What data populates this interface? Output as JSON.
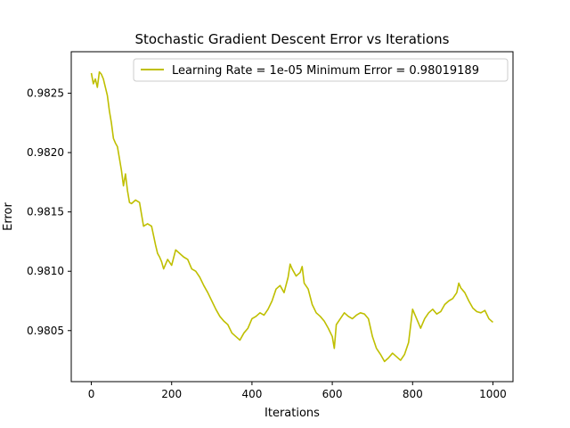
{
  "chart_data": {
    "type": "line",
    "title": "Stochastic Gradient Descent Error vs Iterations",
    "xlabel": "Iterations",
    "ylabel": "Error",
    "xlim": [
      -50,
      1050
    ],
    "ylim": [
      0.98007,
      0.98285
    ],
    "x_ticks": [
      0,
      200,
      400,
      600,
      800,
      1000
    ],
    "x_tick_labels": [
      "0",
      "200",
      "400",
      "600",
      "800",
      "1000"
    ],
    "y_ticks": [
      0.9805,
      0.981,
      0.9815,
      0.982,
      0.9825
    ],
    "y_tick_labels": [
      "0.9805",
      "0.9810",
      "0.9815",
      "0.9820",
      "0.9825"
    ],
    "grid": false,
    "legend_position": "top-right",
    "series": [
      {
        "name": "Learning Rate = 1e-05 Minimum Error = 0.98019189",
        "color": "#bfbf00",
        "points": [
          [
            0,
            0.98267
          ],
          [
            5,
            0.98258
          ],
          [
            10,
            0.98262
          ],
          [
            15,
            0.98255
          ],
          [
            20,
            0.98268
          ],
          [
            25,
            0.98266
          ],
          [
            30,
            0.98262
          ],
          [
            35,
            0.98255
          ],
          [
            40,
            0.98248
          ],
          [
            45,
            0.98235
          ],
          [
            50,
            0.98225
          ],
          [
            55,
            0.98212
          ],
          [
            60,
            0.98208
          ],
          [
            65,
            0.98205
          ],
          [
            70,
            0.98195
          ],
          [
            75,
            0.98185
          ],
          [
            80,
            0.98172
          ],
          [
            85,
            0.98182
          ],
          [
            90,
            0.98168
          ],
          [
            95,
            0.98158
          ],
          [
            100,
            0.98157
          ],
          [
            110,
            0.9816
          ],
          [
            120,
            0.98158
          ],
          [
            125,
            0.98148
          ],
          [
            130,
            0.98138
          ],
          [
            140,
            0.9814
          ],
          [
            150,
            0.98138
          ],
          [
            155,
            0.9813
          ],
          [
            160,
            0.98122
          ],
          [
            165,
            0.98115
          ],
          [
            170,
            0.98112
          ],
          [
            175,
            0.98108
          ],
          [
            180,
            0.98102
          ],
          [
            190,
            0.9811
          ],
          [
            200,
            0.98105
          ],
          [
            210,
            0.98118
          ],
          [
            220,
            0.98115
          ],
          [
            230,
            0.98112
          ],
          [
            240,
            0.9811
          ],
          [
            250,
            0.98102
          ],
          [
            260,
            0.981
          ],
          [
            270,
            0.98095
          ],
          [
            280,
            0.98088
          ],
          [
            290,
            0.98082
          ],
          [
            300,
            0.98075
          ],
          [
            310,
            0.98068
          ],
          [
            320,
            0.98062
          ],
          [
            330,
            0.98058
          ],
          [
            340,
            0.98055
          ],
          [
            350,
            0.98048
          ],
          [
            360,
            0.98045
          ],
          [
            370,
            0.98042
          ],
          [
            380,
            0.98048
          ],
          [
            390,
            0.98052
          ],
          [
            400,
            0.9806
          ],
          [
            410,
            0.98062
          ],
          [
            420,
            0.98065
          ],
          [
            430,
            0.98063
          ],
          [
            440,
            0.98068
          ],
          [
            450,
            0.98075
          ],
          [
            460,
            0.98085
          ],
          [
            470,
            0.98088
          ],
          [
            480,
            0.98082
          ],
          [
            490,
            0.98095
          ],
          [
            495,
            0.98106
          ],
          [
            500,
            0.98102
          ],
          [
            510,
            0.98096
          ],
          [
            520,
            0.98099
          ],
          [
            525,
            0.98104
          ],
          [
            530,
            0.9809
          ],
          [
            540,
            0.98085
          ],
          [
            550,
            0.98072
          ],
          [
            560,
            0.98065
          ],
          [
            570,
            0.98062
          ],
          [
            580,
            0.98058
          ],
          [
            590,
            0.98052
          ],
          [
            600,
            0.98045
          ],
          [
            605,
            0.98035
          ],
          [
            610,
            0.98055
          ],
          [
            620,
            0.9806
          ],
          [
            630,
            0.98065
          ],
          [
            640,
            0.98062
          ],
          [
            650,
            0.9806
          ],
          [
            660,
            0.98063
          ],
          [
            670,
            0.98065
          ],
          [
            680,
            0.98064
          ],
          [
            690,
            0.9806
          ],
          [
            700,
            0.98045
          ],
          [
            710,
            0.98035
          ],
          [
            720,
            0.9803
          ],
          [
            730,
            0.98024
          ],
          [
            740,
            0.98027
          ],
          [
            750,
            0.98031
          ],
          [
            760,
            0.98028
          ],
          [
            770,
            0.98025
          ],
          [
            780,
            0.9803
          ],
          [
            790,
            0.9804
          ],
          [
            800,
            0.98068
          ],
          [
            810,
            0.9806
          ],
          [
            820,
            0.98052
          ],
          [
            830,
            0.9806
          ],
          [
            840,
            0.98065
          ],
          [
            850,
            0.98068
          ],
          [
            860,
            0.98064
          ],
          [
            870,
            0.98066
          ],
          [
            880,
            0.98072
          ],
          [
            890,
            0.98075
          ],
          [
            900,
            0.98077
          ],
          [
            910,
            0.98082
          ],
          [
            915,
            0.9809
          ],
          [
            920,
            0.98086
          ],
          [
            930,
            0.98082
          ],
          [
            940,
            0.98075
          ],
          [
            950,
            0.98069
          ],
          [
            960,
            0.98066
          ],
          [
            970,
            0.98065
          ],
          [
            980,
            0.98067
          ],
          [
            990,
            0.9806
          ],
          [
            1000,
            0.98057
          ]
        ]
      }
    ]
  }
}
